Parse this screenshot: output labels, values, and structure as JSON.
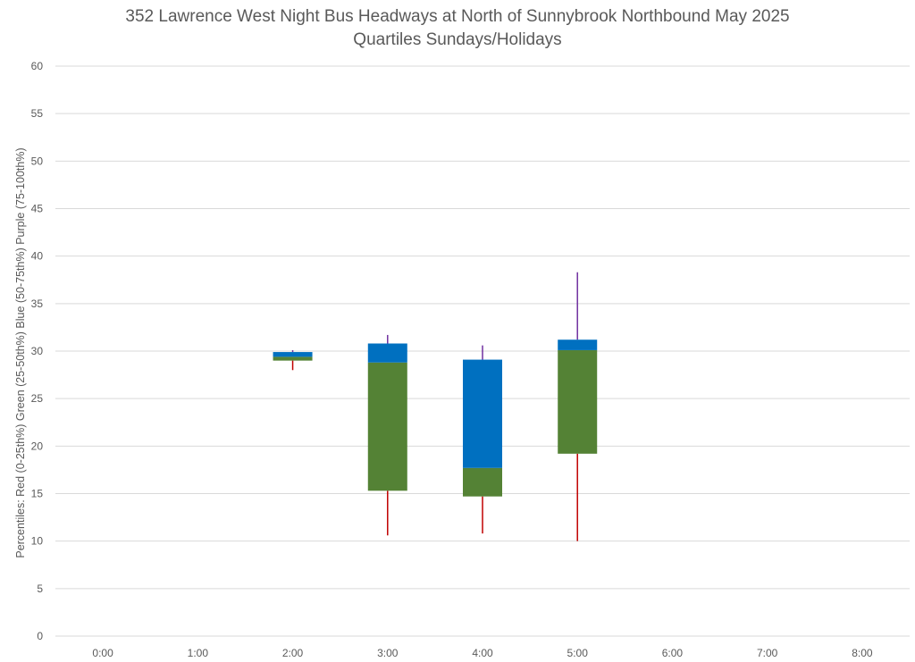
{
  "chart_data": {
    "type": "box",
    "title": "352 Lawrence West Night Bus Headways at North of Sunnybrook Northbound May 2025",
    "subtitle": "Quartiles Sundays/Holidays",
    "xlabel": "",
    "ylabel": "Percentiles:  Red (0-25th%)  Green (25-50th%)  Blue (50-75th%)  Purple (75-100th%)",
    "categories": [
      "0:00",
      "1:00",
      "2:00",
      "3:00",
      "4:00",
      "5:00",
      "6:00",
      "7:00",
      "8:00"
    ],
    "ylim": [
      0,
      60
    ],
    "yticks": [
      0,
      5,
      10,
      15,
      20,
      25,
      30,
      35,
      40,
      45,
      50,
      55,
      60
    ],
    "grid": true,
    "colors": {
      "min_to_q1": "#c00000",
      "q1_to_median": "#548235",
      "median_to_q3": "#0070c0",
      "q3_to_max": "#7030a0",
      "gridline": "#d9d9d9"
    },
    "boxes": [
      {
        "category": "2:00",
        "min": 28.0,
        "q1": 29.0,
        "median": 29.4,
        "q3": 29.9,
        "max": 30.1
      },
      {
        "category": "3:00",
        "min": 10.6,
        "q1": 15.3,
        "median": 28.8,
        "q3": 30.8,
        "max": 31.7
      },
      {
        "category": "4:00",
        "min": 10.8,
        "q1": 14.7,
        "median": 17.7,
        "q3": 29.1,
        "max": 30.6
      },
      {
        "category": "5:00",
        "min": 10.0,
        "q1": 19.2,
        "median": 30.1,
        "q3": 31.2,
        "max": 38.3
      }
    ]
  }
}
